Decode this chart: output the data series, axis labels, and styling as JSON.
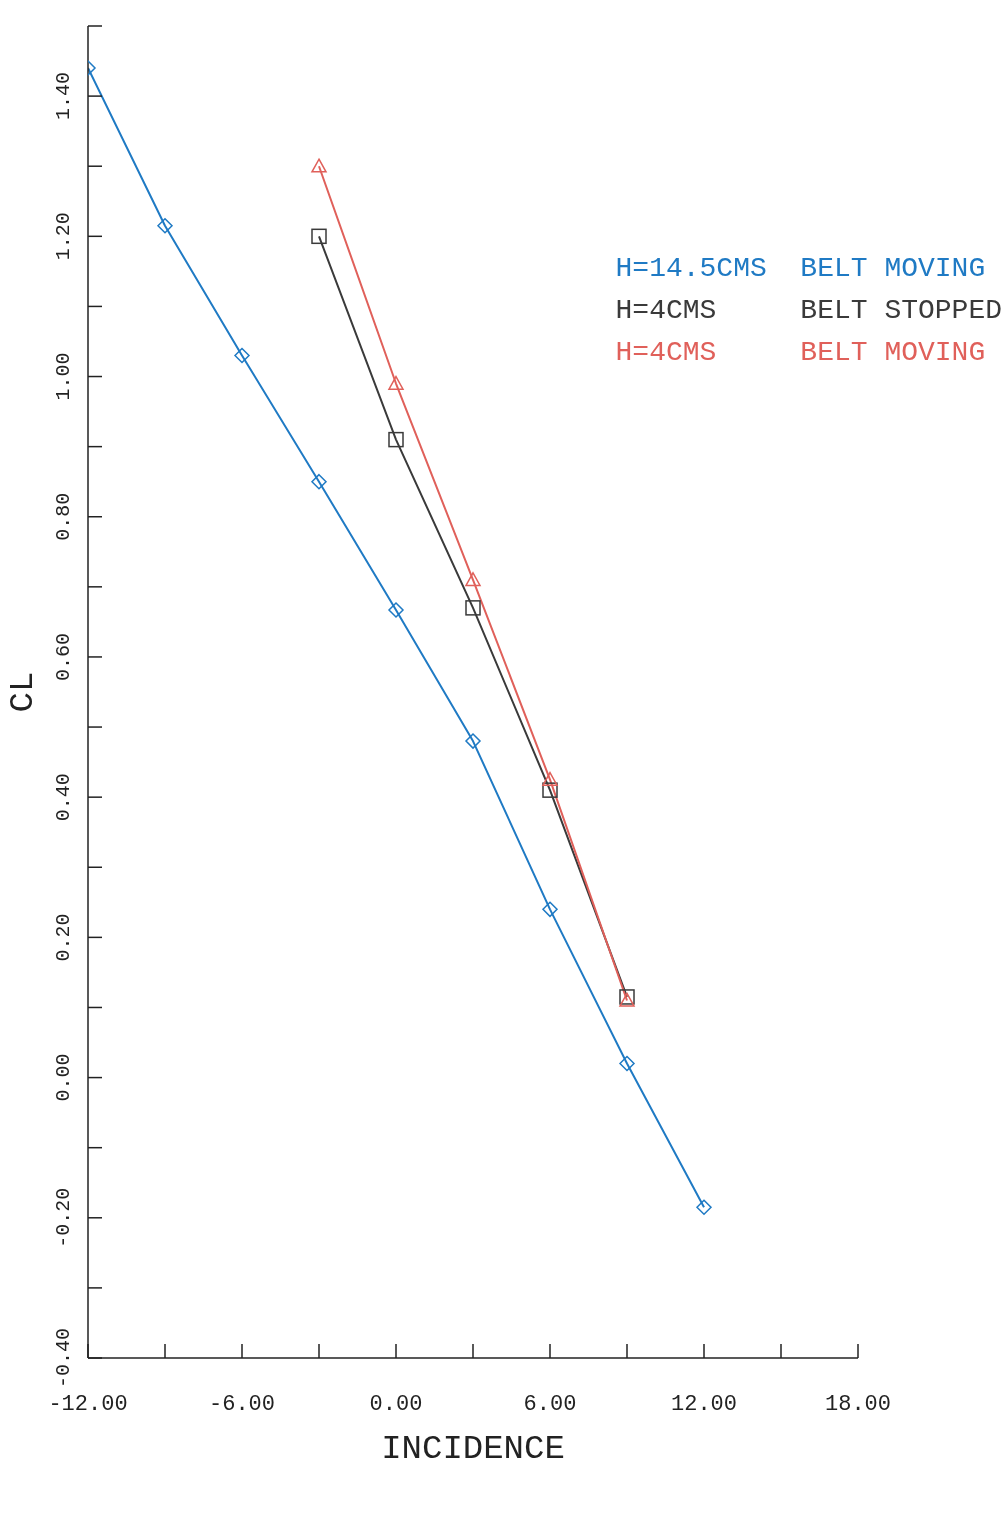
{
  "chart_data": {
    "type": "line",
    "xlabel": "INCIDENCE",
    "ylabel": "CL",
    "x": [
      -12,
      -9,
      -6,
      -3,
      0,
      3,
      6,
      9,
      12
    ],
    "series": [
      {
        "name": "H=14.5CMS  BELT MOVING",
        "color": "#1f7ac4",
        "marker": "diamond",
        "values": [
          1.44,
          1.215,
          1.03,
          0.85,
          0.667,
          0.48,
          0.24,
          0.02,
          -0.185
        ]
      },
      {
        "name": "H=4CMS     BELT STOPPED",
        "color": "#3a3a3a",
        "marker": "square",
        "values": [
          null,
          null,
          null,
          1.2,
          0.91,
          0.67,
          0.41,
          0.115,
          null
        ]
      },
      {
        "name": "H=4CMS     BELT MOVING",
        "color": "#e0605a",
        "marker": "triangle",
        "values": [
          null,
          null,
          null,
          1.3,
          0.99,
          0.71,
          0.425,
          0.11,
          null
        ]
      }
    ],
    "xlim": [
      -12,
      18
    ],
    "xticks": [
      {
        "value": -12,
        "label": "-12.00"
      },
      {
        "value": -9,
        "label": null
      },
      {
        "value": -6,
        "label": "-6.00"
      },
      {
        "value": -3,
        "label": null
      },
      {
        "value": 0,
        "label": "0.00"
      },
      {
        "value": 3,
        "label": null
      },
      {
        "value": 6,
        "label": "6.00"
      },
      {
        "value": 9,
        "label": null
      },
      {
        "value": 12,
        "label": "12.00"
      },
      {
        "value": 15,
        "label": null
      },
      {
        "value": 18,
        "label": "18.00"
      }
    ],
    "ylim": [
      -0.4,
      1.5
    ],
    "yticks": [
      {
        "value": -0.4,
        "label": "-0.40"
      },
      {
        "value": -0.3,
        "label": null
      },
      {
        "value": -0.2,
        "label": "-0.20"
      },
      {
        "value": -0.1,
        "label": null
      },
      {
        "value": 0,
        "label": "0.00"
      },
      {
        "value": 0.1,
        "label": null
      },
      {
        "value": 0.2,
        "label": "0.20"
      },
      {
        "value": 0.3,
        "label": null
      },
      {
        "value": 0.4,
        "label": "0.40"
      },
      {
        "value": 0.5,
        "label": null
      },
      {
        "value": 0.6,
        "label": "0.60"
      },
      {
        "value": 0.7,
        "label": null
      },
      {
        "value": 0.8,
        "label": "0.80"
      },
      {
        "value": 0.9,
        "label": null
      },
      {
        "value": 1.0,
        "label": "1.00"
      },
      {
        "value": 1.1,
        "label": null
      },
      {
        "value": 1.2,
        "label": "1.20"
      },
      {
        "value": 1.3,
        "label": null
      },
      {
        "value": 1.4,
        "label": "1.40"
      },
      {
        "value": 1.5,
        "label": null
      }
    ],
    "grid": false,
    "legend": "top right"
  }
}
